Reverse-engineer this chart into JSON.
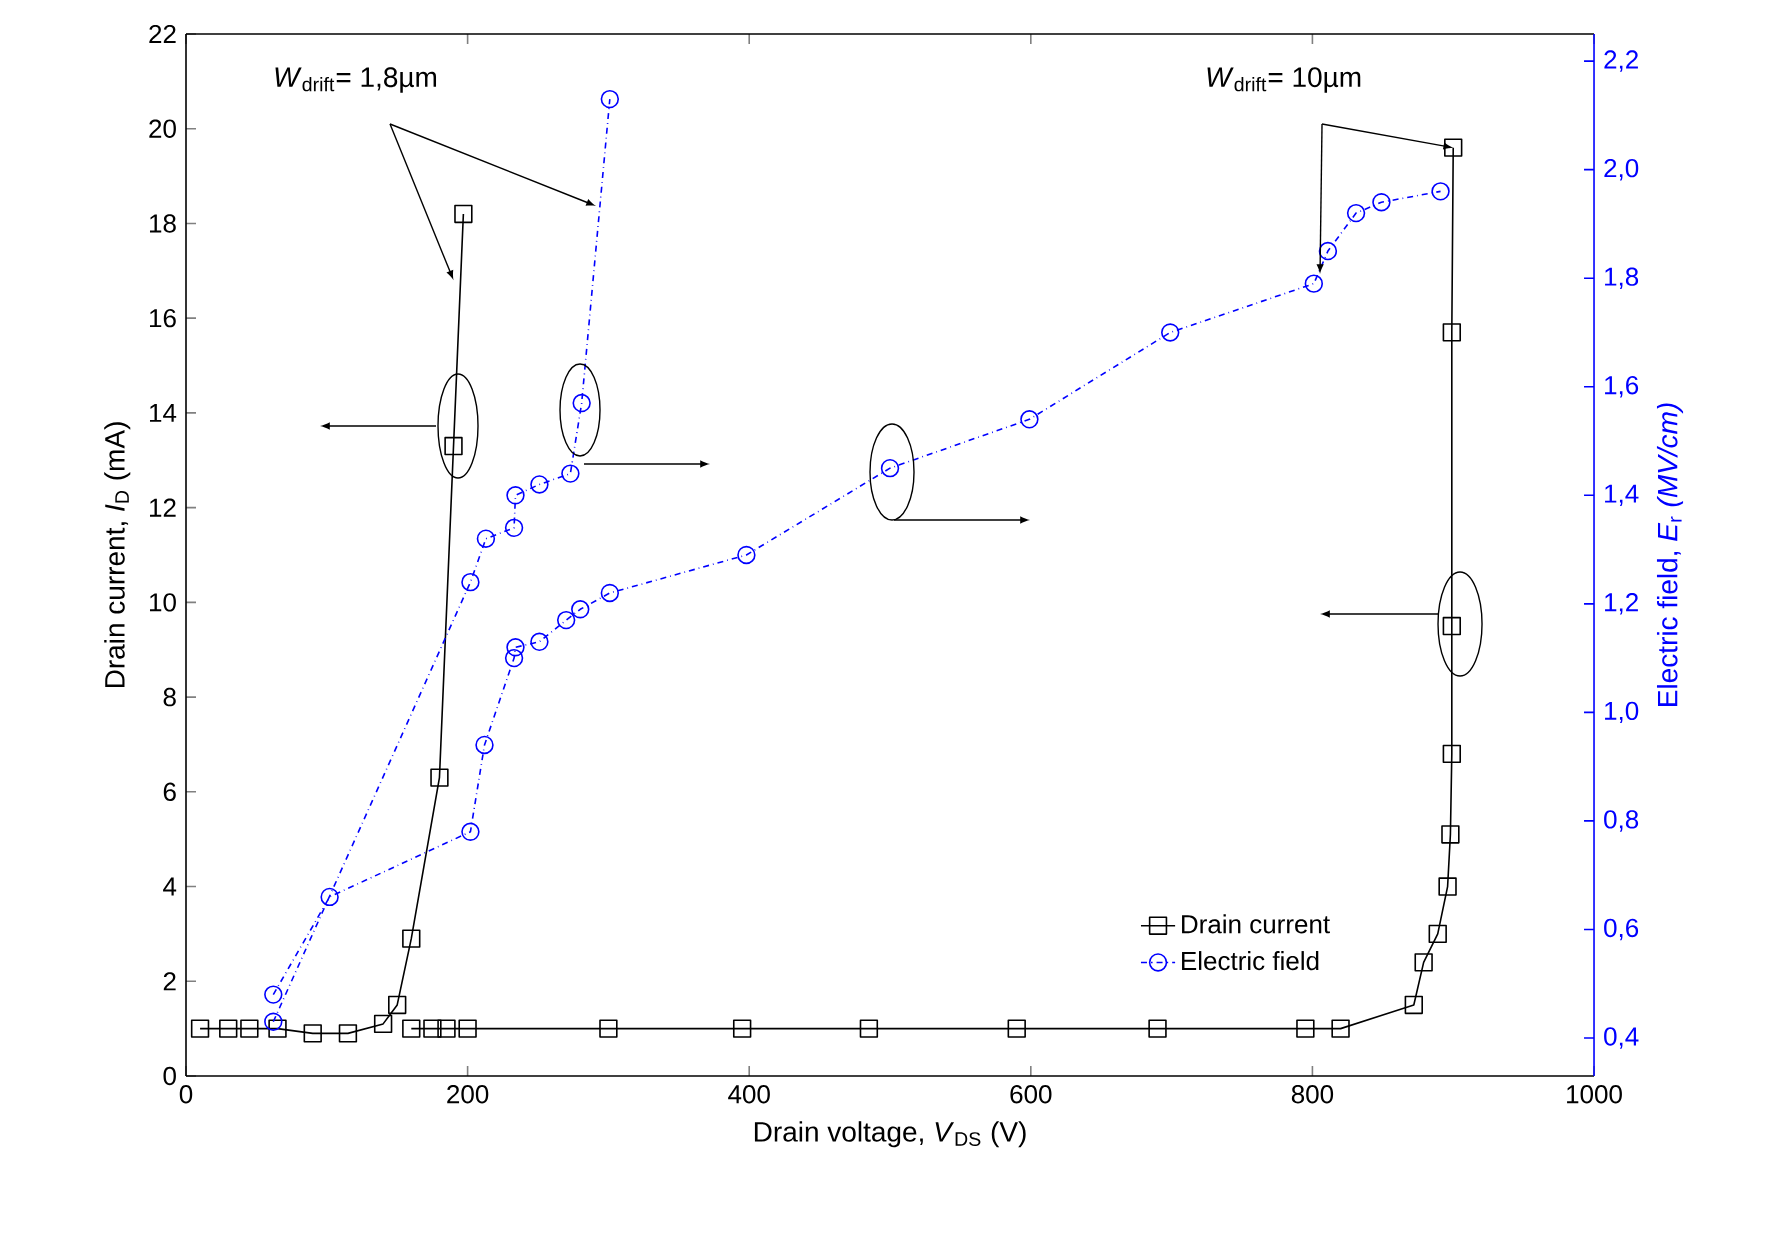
{
  "chart_data": {
    "type": "line",
    "xlabel": "Drain voltage, *V*$_{DS}$ (V)",
    "ylabel": "Drain current, *I*$_{D}$ (mA)",
    "y2label": "Electric field, *E*$_{r}$ *(MV/cm)*",
    "annotations": [
      {
        "text": "*W*$_{drift}$= 1,8µm",
        "x": 190,
        "y": 16.8
      },
      {
        "text": "*W*$_{drift}$= 10µm",
        "x": 900,
        "y": 19.6
      }
    ],
    "xlim": [
      0,
      1000
    ],
    "xticks": [
      0,
      200,
      400,
      600,
      800,
      1000
    ],
    "ylim": [
      0,
      22
    ],
    "yticks": [
      0,
      2,
      4,
      6,
      8,
      10,
      12,
      14,
      16,
      18,
      20,
      22
    ],
    "y2lim": [
      0.33,
      2.25
    ],
    "y2ticks": [
      {
        "value": 0.4,
        "label": "0,4"
      },
      {
        "value": 0.6,
        "label": "0,6"
      },
      {
        "value": 0.8,
        "label": "0,8"
      },
      {
        "value": 1.0,
        "label": "1,0"
      },
      {
        "value": 1.2,
        "label": "1,2"
      },
      {
        "value": 1.4,
        "label": "1,4"
      },
      {
        "value": 1.6,
        "label": "1,6"
      },
      {
        "value": 1.8,
        "label": "1,8"
      },
      {
        "value": 2.0,
        "label": "2,0"
      },
      {
        "value": 2.2,
        "label": "2,2"
      }
    ],
    "legend": "bottom right",
    "series": [
      {
        "name": "Drain current",
        "color": "#000000",
        "marker": "square",
        "line_style": "solid",
        "x": [
          10,
          30,
          45,
          65,
          90,
          115,
          140,
          150,
          160,
          180,
          190,
          197
        ],
        "values": [
          1,
          1,
          1,
          1,
          0.9,
          0.9,
          1.1,
          1.5,
          2.9,
          6.3,
          13.3,
          18.2
        ]
      },
      {
        "color": "#000000",
        "marker": "square",
        "line_style": "solid",
        "x": [
          160,
          175,
          185,
          200,
          300,
          395,
          485,
          590,
          690,
          795,
          820,
          872,
          879,
          889,
          896,
          898,
          899,
          899,
          899,
          900
        ],
        "values": [
          1,
          1,
          1,
          1,
          1,
          1,
          1,
          1,
          1,
          1,
          1,
          1.5,
          2.4,
          3.0,
          4.0,
          5.1,
          6.8,
          9.5,
          15.7,
          19.6
        ]
      },
      {
        "name": "Electric field",
        "color": "#0000ff",
        "marker": "circle",
        "line_style": "dashdot",
        "axis": "y2",
        "x": [
          62,
          202,
          213,
          233,
          234,
          251,
          273,
          281,
          301
        ],
        "values": [
          0.43,
          1.24,
          1.32,
          1.34,
          1.4,
          1.42,
          1.44,
          1.57,
          2.13
        ]
      },
      {
        "color": "#0000ff",
        "marker": "circle",
        "line_style": "dashdot",
        "axis": "y2",
        "x": [
          62,
          102,
          202,
          212,
          233,
          234,
          251,
          270,
          280,
          301,
          398,
          500,
          599,
          699,
          801,
          811,
          831,
          849,
          891
        ],
        "values": [
          0.48,
          0.66,
          0.78,
          0.94,
          1.1,
          1.12,
          1.13,
          1.17,
          1.19,
          1.22,
          1.29,
          1.45,
          1.54,
          1.7,
          1.79,
          1.85,
          1.92,
          1.94,
          1.96
        ]
      }
    ]
  }
}
